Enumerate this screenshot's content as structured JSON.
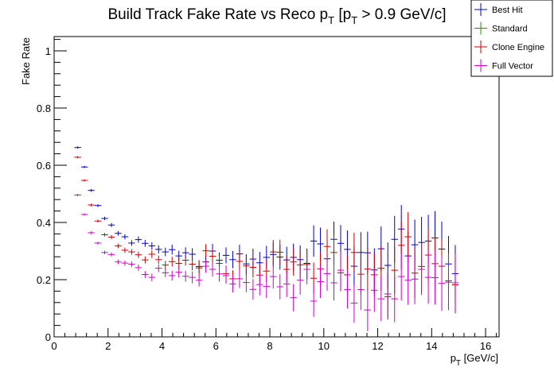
{
  "chart_data": {
    "type": "scatter",
    "title": "Build Track Fake Rate vs Reco p_T [p_T > 0.9 GeV/c]",
    "title_parts": {
      "main": "Build Track Fake Rate vs Reco p",
      "sub1": "T",
      "mid": " [p",
      "sub2": "T",
      "end": " > 0.9 GeV/c]"
    },
    "xlabel": "p_T [GeV/c]",
    "xlabel_parts": {
      "main": "p",
      "sub": "T",
      "rest": " [GeV/c]"
    },
    "ylabel": "Fake Rate",
    "xlim": [
      0,
      16.5
    ],
    "ylim": [
      0,
      1.05
    ],
    "xticks": [
      0,
      2,
      4,
      6,
      8,
      10,
      12,
      14,
      16
    ],
    "xtick_labels": [
      "0",
      "2",
      "4",
      "6",
      "8",
      "10",
      "12",
      "14",
      "16"
    ],
    "yticks": [
      0,
      0.2,
      0.4,
      0.6,
      0.8,
      1
    ],
    "ytick_labels": [
      "0",
      "0.2",
      "0.4",
      "0.6",
      "0.8",
      "1"
    ],
    "grid": false,
    "legend_position": "top-right",
    "bin_halfwidth": 0.125,
    "series": [
      {
        "name": "Best Hit",
        "color": "#0000cc",
        "points": [
          [
            0.875,
            0.662,
            0.004
          ],
          [
            1.125,
            0.594,
            0.004
          ],
          [
            1.375,
            0.512,
            0.005
          ],
          [
            1.625,
            0.459,
            0.005
          ],
          [
            1.875,
            0.414,
            0.006
          ],
          [
            2.125,
            0.391,
            0.007
          ],
          [
            2.375,
            0.362,
            0.008
          ],
          [
            2.625,
            0.35,
            0.009
          ],
          [
            2.875,
            0.328,
            0.01
          ],
          [
            3.125,
            0.34,
            0.011
          ],
          [
            3.375,
            0.327,
            0.012
          ],
          [
            3.625,
            0.318,
            0.013
          ],
          [
            3.875,
            0.306,
            0.014
          ],
          [
            4.125,
            0.297,
            0.015
          ],
          [
            4.375,
            0.305,
            0.017
          ],
          [
            4.625,
            0.283,
            0.018
          ],
          [
            4.875,
            0.294,
            0.019
          ],
          [
            5.125,
            0.289,
            0.021
          ],
          [
            5.375,
            0.246,
            0.022
          ],
          [
            5.625,
            0.262,
            0.023
          ],
          [
            5.875,
            0.3,
            0.025
          ],
          [
            6.125,
            0.268,
            0.027
          ],
          [
            6.375,
            0.285,
            0.028
          ],
          [
            6.625,
            0.27,
            0.03
          ],
          [
            6.875,
            0.29,
            0.032
          ],
          [
            7.125,
            0.255,
            0.034
          ],
          [
            7.375,
            0.272,
            0.036
          ],
          [
            7.625,
            0.259,
            0.038
          ],
          [
            7.875,
            0.278,
            0.04
          ],
          [
            8.125,
            0.288,
            0.042
          ],
          [
            8.375,
            0.279,
            0.044
          ],
          [
            8.625,
            0.269,
            0.046
          ],
          [
            8.875,
            0.278,
            0.048
          ],
          [
            9.125,
            0.27,
            0.05
          ],
          [
            9.375,
            0.257,
            0.052
          ],
          [
            9.625,
            0.335,
            0.055
          ],
          [
            9.875,
            0.325,
            0.057
          ],
          [
            10.125,
            0.273,
            0.06
          ],
          [
            10.375,
            0.341,
            0.062
          ],
          [
            10.625,
            0.327,
            0.064
          ],
          [
            10.875,
            0.306,
            0.066
          ],
          [
            11.125,
            0.247,
            0.069
          ],
          [
            11.375,
            0.295,
            0.071
          ],
          [
            11.625,
            0.294,
            0.074
          ],
          [
            11.875,
            0.234,
            0.076
          ],
          [
            12.125,
            0.308,
            0.078
          ],
          [
            12.375,
            0.25,
            0.08
          ],
          [
            12.625,
            0.341,
            0.082
          ],
          [
            12.875,
            0.377,
            0.084
          ],
          [
            13.125,
            0.283,
            0.086
          ],
          [
            13.375,
            0.322,
            0.088
          ],
          [
            13.625,
            0.33,
            0.09
          ],
          [
            13.875,
            0.335,
            0.092
          ],
          [
            14.125,
            0.346,
            0.094
          ],
          [
            14.375,
            0.307,
            0.096
          ],
          [
            14.625,
            0.255,
            0.098
          ],
          [
            14.875,
            0.221,
            0.1
          ]
        ]
      },
      {
        "name": "Standard",
        "color": "#00aa00",
        "points": []
      },
      {
        "name": "Clone Engine",
        "color": "#cc0000",
        "points": [
          [
            0.875,
            0.628,
            0.004
          ],
          [
            1.125,
            0.547,
            0.004
          ],
          [
            1.375,
            0.461,
            0.005
          ],
          [
            1.625,
            0.405,
            0.005
          ],
          [
            1.875,
            0.357,
            0.006
          ],
          [
            2.125,
            0.349,
            0.007
          ],
          [
            2.375,
            0.318,
            0.008
          ],
          [
            2.625,
            0.303,
            0.009
          ],
          [
            2.875,
            0.297,
            0.01
          ],
          [
            3.125,
            0.287,
            0.011
          ],
          [
            3.375,
            0.269,
            0.012
          ],
          [
            3.625,
            0.289,
            0.013
          ],
          [
            3.875,
            0.27,
            0.014
          ],
          [
            4.125,
            0.251,
            0.015
          ],
          [
            4.375,
            0.263,
            0.017
          ],
          [
            4.625,
            0.257,
            0.018
          ],
          [
            4.875,
            0.268,
            0.019
          ],
          [
            5.125,
            0.254,
            0.021
          ],
          [
            5.375,
            0.241,
            0.022
          ],
          [
            5.625,
            0.301,
            0.023
          ],
          [
            5.875,
            0.282,
            0.025
          ],
          [
            6.125,
            0.257,
            0.027
          ],
          [
            6.375,
            0.221,
            0.028
          ],
          [
            6.625,
            0.203,
            0.03
          ],
          [
            6.875,
            0.264,
            0.032
          ],
          [
            7.125,
            0.248,
            0.034
          ],
          [
            7.375,
            0.243,
            0.036
          ],
          [
            7.625,
            0.216,
            0.038
          ],
          [
            7.875,
            0.23,
            0.04
          ],
          [
            8.125,
            0.297,
            0.042
          ],
          [
            8.375,
            0.296,
            0.044
          ],
          [
            8.625,
            0.236,
            0.046
          ],
          [
            8.875,
            0.262,
            0.048
          ],
          [
            9.125,
            0.252,
            0.05
          ],
          [
            9.375,
            0.253,
            0.052
          ],
          [
            9.625,
            0.205,
            0.055
          ],
          [
            9.875,
            0.238,
            0.057
          ],
          [
            10.125,
            0.316,
            0.06
          ],
          [
            10.375,
            0.295,
            0.062
          ],
          [
            10.625,
            0.224,
            0.064
          ],
          [
            10.875,
            0.217,
            0.066
          ],
          [
            11.125,
            0.295,
            0.069
          ],
          [
            11.375,
            0.219,
            0.071
          ],
          [
            11.625,
            0.237,
            0.074
          ],
          [
            11.875,
            0.217,
            0.076
          ],
          [
            12.125,
            0.24,
            0.078
          ],
          [
            12.375,
            0.14,
            0.08
          ],
          [
            12.625,
            0.233,
            0.082
          ],
          [
            12.875,
            0.32,
            0.084
          ],
          [
            13.125,
            0.35,
            0.086
          ],
          [
            13.375,
            0.223,
            0.088
          ],
          [
            13.625,
            0.246,
            0.09
          ],
          [
            13.875,
            0.286,
            0.092
          ],
          [
            14.125,
            0.256,
            0.094
          ],
          [
            14.375,
            0.247,
            0.096
          ],
          [
            14.625,
            0.196,
            0.098
          ],
          [
            14.875,
            0.182,
            0.1
          ]
        ]
      },
      {
        "name": "Full Vector",
        "color": "#cc00cc",
        "points": [
          [
            0.875,
            0.496,
            0.004
          ],
          [
            1.125,
            0.428,
            0.004
          ],
          [
            1.375,
            0.364,
            0.005
          ],
          [
            1.625,
            0.328,
            0.005
          ],
          [
            1.875,
            0.295,
            0.006
          ],
          [
            2.125,
            0.288,
            0.007
          ],
          [
            2.375,
            0.262,
            0.008
          ],
          [
            2.625,
            0.258,
            0.009
          ],
          [
            2.875,
            0.254,
            0.01
          ],
          [
            3.125,
            0.242,
            0.011
          ],
          [
            3.375,
            0.218,
            0.012
          ],
          [
            3.625,
            0.208,
            0.013
          ],
          [
            3.875,
            0.24,
            0.014
          ],
          [
            4.125,
            0.224,
            0.015
          ],
          [
            4.375,
            0.214,
            0.017
          ],
          [
            4.625,
            0.226,
            0.018
          ],
          [
            4.875,
            0.212,
            0.019
          ],
          [
            5.125,
            0.208,
            0.021
          ],
          [
            5.375,
            0.198,
            0.022
          ],
          [
            5.625,
            0.247,
            0.023
          ],
          [
            5.875,
            0.236,
            0.025
          ],
          [
            6.125,
            0.22,
            0.027
          ],
          [
            6.375,
            0.214,
            0.028
          ],
          [
            6.625,
            0.185,
            0.03
          ],
          [
            6.875,
            0.203,
            0.032
          ],
          [
            7.125,
            0.19,
            0.034
          ],
          [
            7.375,
            0.166,
            0.036
          ],
          [
            7.625,
            0.183,
            0.038
          ],
          [
            7.875,
            0.176,
            0.04
          ],
          [
            8.125,
            0.211,
            0.042
          ],
          [
            8.375,
            0.175,
            0.044
          ],
          [
            8.625,
            0.185,
            0.046
          ],
          [
            8.875,
            0.137,
            0.048
          ],
          [
            9.125,
            0.198,
            0.05
          ],
          [
            9.375,
            0.236,
            0.052
          ],
          [
            9.625,
            0.125,
            0.055
          ],
          [
            9.875,
            0.193,
            0.057
          ],
          [
            10.125,
            0.221,
            0.06
          ],
          [
            10.375,
            0.189,
            0.062
          ],
          [
            10.625,
            0.233,
            0.064
          ],
          [
            10.875,
            0.165,
            0.066
          ],
          [
            11.125,
            0.118,
            0.069
          ],
          [
            11.375,
            0.165,
            0.071
          ],
          [
            11.625,
            0.094,
            0.074
          ],
          [
            11.875,
            0.163,
            0.076
          ],
          [
            12.125,
            0.133,
            0.078
          ],
          [
            12.375,
            0.15,
            0.08
          ],
          [
            12.625,
            0.133,
            0.082
          ],
          [
            12.875,
            0.211,
            0.084
          ],
          [
            13.125,
            0.198,
            0.086
          ],
          [
            13.375,
            0.202,
            0.088
          ],
          [
            13.625,
            0.236,
            0.09
          ],
          [
            13.875,
            0.208,
            0.092
          ],
          [
            14.125,
            0.207,
            0.094
          ],
          [
            14.375,
            0.187,
            0.096
          ],
          [
            14.625,
            0.191,
            0.098
          ],
          [
            14.875,
            0.189,
            0.1
          ]
        ]
      }
    ]
  }
}
